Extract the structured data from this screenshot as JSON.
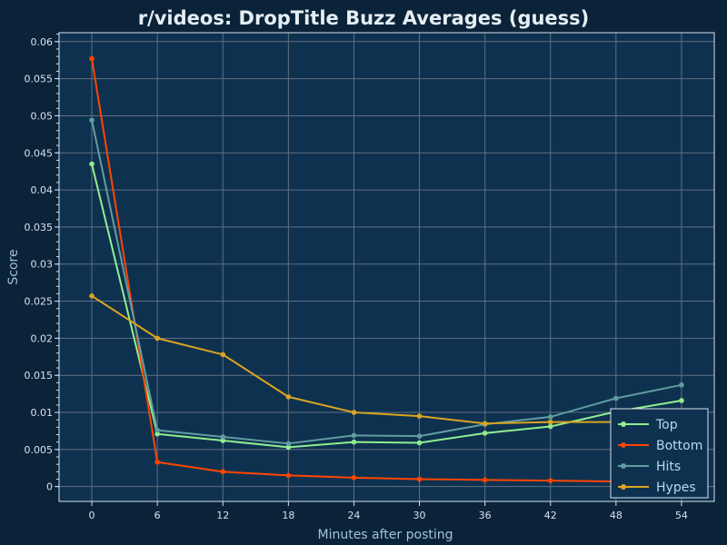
{
  "chart_data": {
    "type": "line",
    "title": "r/videos: DropTitle Buzz Averages (guess)",
    "xlabel": "Minutes after posting",
    "ylabel": "Score",
    "x": [
      0,
      6,
      12,
      18,
      24,
      30,
      36,
      42,
      48,
      54
    ],
    "xticks": [
      "0",
      "6",
      "12",
      "18",
      "24",
      "30",
      "36",
      "42",
      "48",
      "54"
    ],
    "yticks": [
      "0",
      "0.005",
      "0.01",
      "0.015",
      "0.02",
      "0.025",
      "0.03",
      "0.035",
      "0.04",
      "0.045",
      "0.05",
      "0.055",
      "0.06"
    ],
    "ytick_values": [
      0,
      0.005,
      0.01,
      0.015,
      0.02,
      0.025,
      0.03,
      0.035,
      0.04,
      0.045,
      0.05,
      0.055,
      0.06
    ],
    "xlim": [
      -3,
      57
    ],
    "ylim": [
      -0.002,
      0.0612
    ],
    "grid": true,
    "legend_position": "bottom-right",
    "series": [
      {
        "name": "Top",
        "color": "#90ee90",
        "values": [
          0.0435,
          0.0071,
          0.0062,
          0.0053,
          0.006,
          0.0059,
          0.0072,
          0.0081,
          0.0101,
          0.0116
        ]
      },
      {
        "name": "Bottom",
        "color": "#ff4500",
        "values": [
          0.0577,
          0.0033,
          0.002,
          0.0015,
          0.0012,
          0.001,
          0.0009,
          0.0008,
          0.0007,
          0.0006
        ]
      },
      {
        "name": "Hits",
        "color": "#5f9ea0",
        "values": [
          0.0494,
          0.0076,
          0.0067,
          0.0058,
          0.0069,
          0.0068,
          0.0084,
          0.0094,
          0.0119,
          0.0137
        ]
      },
      {
        "name": "Hypes",
        "color": "#daa520",
        "values": [
          0.0257,
          0.02,
          0.0178,
          0.0121,
          0.01,
          0.0095,
          0.0085,
          0.0087,
          0.0087,
          0.0087
        ]
      }
    ]
  }
}
